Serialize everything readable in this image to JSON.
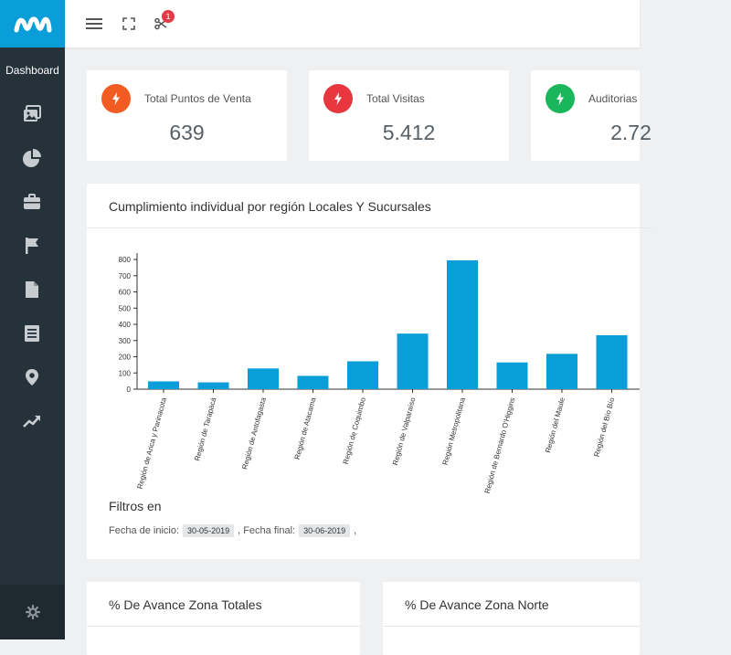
{
  "sidebar": {
    "dashboard_label": "Dashboard",
    "icons": [
      "images-icon",
      "pie-chart-icon",
      "briefcase-icon",
      "flag-icon",
      "file-icon",
      "list-document-icon",
      "map-marker-icon",
      "trending-up-icon"
    ],
    "bottom_icon": "gear-icon"
  },
  "topbar": {
    "icons": [
      "menu-icon",
      "fullscreen-icon",
      "scissors-icon"
    ],
    "badge_count": "1"
  },
  "stats": [
    {
      "label": "Total Puntos de Venta",
      "value": "639",
      "color": "#f25c22",
      "icon": "bolt-icon"
    },
    {
      "label": "Total Visitas",
      "value": "5.412",
      "color": "#e8363f",
      "icon": "bolt-icon"
    },
    {
      "label": "Auditorias",
      "value": "2.72",
      "color": "#1ab65c",
      "icon": "bolt-icon"
    }
  ],
  "chart_section": {
    "title": "Cumplimiento individual por región Locales Y Sucursales"
  },
  "chart_data": {
    "type": "bar",
    "title": "",
    "categories": [
      "Región de Arica y Parinacota",
      "Región de Tarapacá",
      "Región de Antofagasta",
      "Región de Atacama",
      "Región de Coquimbo",
      "Región de Valparaíso",
      "Región Metropolitana",
      "Región de Bernardo O'Higgins",
      "Región del Maule",
      "Región del Bío Bío"
    ],
    "values": [
      48,
      42,
      128,
      82,
      172,
      343,
      795,
      165,
      218,
      333
    ],
    "yticks": [
      "0",
      "100",
      "200",
      "300",
      "400",
      "500",
      "600",
      "700",
      "800"
    ],
    "ylim": [
      0,
      840
    ],
    "bar_color": "#0a9ed8",
    "grid": false
  },
  "filters": {
    "title": "Filtros en",
    "start_label": "Fecha de inicio:",
    "start_value": "30-05-2019",
    "end_label": ", Fecha final:",
    "end_value": "30-06-2019",
    "trailing": ","
  },
  "bottom_cards": [
    {
      "title": "% De Avance Zona Totales"
    },
    {
      "title": "% De Avance Zona Norte"
    }
  ]
}
